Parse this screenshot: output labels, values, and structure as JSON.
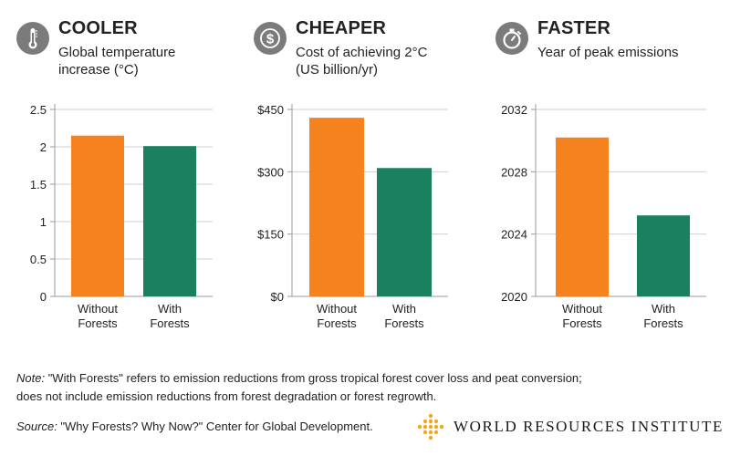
{
  "colors": {
    "without": "#f5821f",
    "with": "#1b8060",
    "axis": "#9a9a9a",
    "grid": "#cfcfcf",
    "icon": "#7b7b7b",
    "logo": "#f0a81c"
  },
  "chart_data": [
    {
      "type": "bar",
      "title": "COOLER",
      "subtitle": "Global temperature increase (°C)",
      "icon": "thermometer-icon",
      "categories": [
        "Without Forests",
        "With Forests"
      ],
      "values": [
        2.15,
        2.01
      ],
      "ylim": [
        0,
        2.5
      ],
      "yticks": [
        0,
        0.5,
        1,
        1.5,
        2,
        2.5
      ],
      "ytick_labels": [
        "0",
        "0.5",
        "1",
        "1.5",
        "2",
        "2.5"
      ],
      "grid": true
    },
    {
      "type": "bar",
      "title": "CHEAPER",
      "subtitle": "Cost of achieving 2°C (US billion/yr)",
      "icon": "dollar-icon",
      "categories": [
        "Without Forests",
        "With Forests"
      ],
      "values": [
        430,
        309
      ],
      "ylim": [
        0,
        450
      ],
      "yticks": [
        0,
        150,
        300,
        450
      ],
      "ytick_labels": [
        "$0",
        "$150",
        "$300",
        "$450"
      ],
      "grid": true
    },
    {
      "type": "bar",
      "title": "FASTER",
      "subtitle": "Year of peak emissions",
      "icon": "stopwatch-icon",
      "categories": [
        "Without Forests",
        "With Forests"
      ],
      "values": [
        2030.2,
        2025.2
      ],
      "ylim": [
        2020,
        2032
      ],
      "yticks": [
        2020,
        2024,
        2028,
        2032
      ],
      "ytick_labels": [
        "2020",
        "2024",
        "2028",
        "2032"
      ],
      "grid": true
    }
  ],
  "footer": {
    "note_label": "Note:",
    "note_text": " \"With Forests\" refers to emission reductions from gross tropical forest cover loss and peat conversion;",
    "note_text2": "does not include emission reductions from forest degradation or forest regrowth.",
    "source_label": "Source:",
    "source_text": " \"Why Forests? Why Now?\" Center for Global Development.",
    "logo_text": "WORLD RESOURCES INSTITUTE"
  }
}
